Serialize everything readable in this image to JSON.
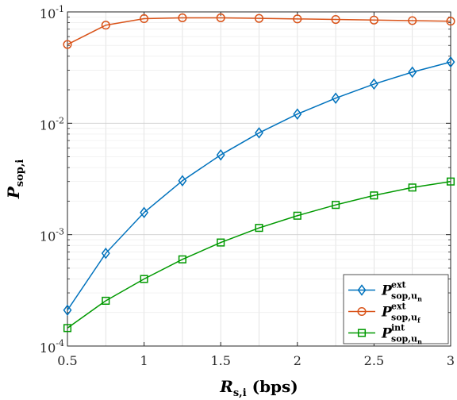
{
  "chart_data": {
    "type": "line",
    "title": "",
    "xlabel": {
      "main": "R",
      "sub": "s,i",
      "suffix": " (bps)"
    },
    "ylabel": {
      "main": "P",
      "sub": "sop,i"
    },
    "xlim": [
      0.5,
      3
    ],
    "ylim": [
      0.0001,
      0.1
    ],
    "y_scale": "log",
    "grid": true,
    "legend_position": "bottom-right",
    "x": [
      0.5,
      0.75,
      1,
      1.25,
      1.5,
      1.75,
      2,
      2.25,
      2.5,
      2.75,
      3
    ],
    "x_tick_labels": [
      "0.5",
      "1",
      "1.5",
      "2",
      "2.5",
      "3"
    ],
    "x_tick_values": [
      0.5,
      1,
      1.5,
      2,
      2.5,
      3
    ],
    "y_tick_values": [
      0.0001,
      0.001,
      0.01,
      0.1
    ],
    "y_tick_labels": [
      {
        "base": "10",
        "exp": "-4"
      },
      {
        "base": "10",
        "exp": "-3"
      },
      {
        "base": "10",
        "exp": "-2"
      },
      {
        "base": "10",
        "exp": "-1"
      }
    ],
    "series": [
      {
        "legend": {
          "main": "P",
          "sup": "ext",
          "sub": "sop,u",
          "subsub": "n"
        },
        "color": "#0072BD",
        "marker": "diamond",
        "values": [
          0.00021,
          0.00068,
          0.00158,
          0.00305,
          0.0052,
          0.0082,
          0.0121,
          0.0168,
          0.0225,
          0.0288,
          0.0355
        ]
      },
      {
        "legend": {
          "main": "P",
          "sup": "ext",
          "sub": "sop,u",
          "subsub": "f"
        },
        "color": "#D95319",
        "marker": "circle",
        "values": [
          0.051,
          0.076,
          0.087,
          0.0885,
          0.0885,
          0.0875,
          0.0865,
          0.0855,
          0.0845,
          0.0835,
          0.0825
        ]
      },
      {
        "legend": {
          "main": "P",
          "sup": "int",
          "sub": "sop,u",
          "subsub": "n"
        },
        "color": "#009900",
        "marker": "square",
        "values": [
          0.000145,
          0.000255,
          0.0004,
          0.0006,
          0.00085,
          0.00115,
          0.00148,
          0.00185,
          0.00225,
          0.00265,
          0.003
        ]
      }
    ]
  }
}
